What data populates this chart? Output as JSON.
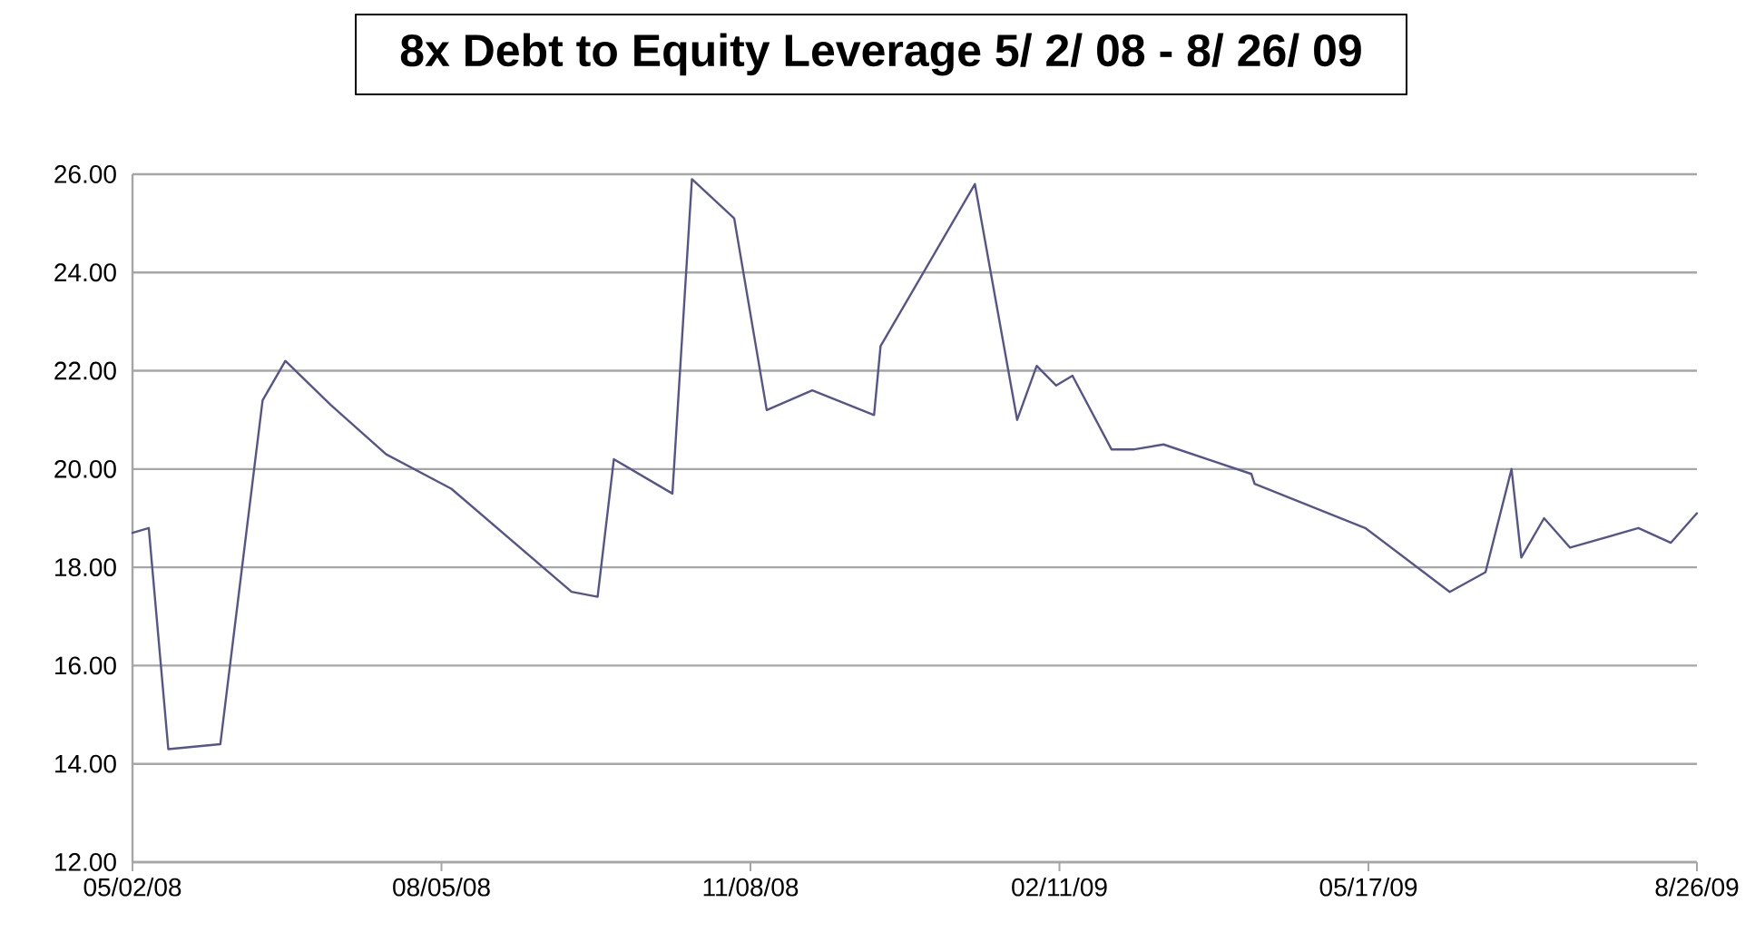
{
  "chart_data": {
    "type": "line",
    "title": "8x Debt to Equity Leverage 5/ 2/ 08 - 8/ 26/ 09",
    "x": [
      "2008-05-02",
      "2008-05-07",
      "2008-05-13",
      "2008-05-29",
      "2008-06-11",
      "2008-06-18",
      "2008-07-02",
      "2008-07-19",
      "2008-08-08",
      "2008-09-14",
      "2008-09-22",
      "2008-09-27",
      "2008-10-15",
      "2008-10-21",
      "2008-11-03",
      "2008-11-13",
      "2008-11-27",
      "2008-12-16",
      "2008-12-18",
      "2009-01-16",
      "2009-01-29",
      "2009-02-04",
      "2009-02-10",
      "2009-02-15",
      "2009-02-27",
      "2009-03-06",
      "2009-03-15",
      "2009-04-11",
      "2009-04-12",
      "2009-05-16",
      "2009-06-11",
      "2009-06-22",
      "2009-06-30",
      "2009-07-03",
      "2009-07-10",
      "2009-07-18",
      "2009-08-08",
      "2009-08-18",
      "2009-08-26"
    ],
    "series": [
      {
        "color": "#55558a",
        "values": [
          18.7,
          18.8,
          14.3,
          14.4,
          21.4,
          22.2,
          21.3,
          20.3,
          19.6,
          17.5,
          17.4,
          20.2,
          19.5,
          25.9,
          25.1,
          21.2,
          21.6,
          21.1,
          22.5,
          25.8,
          21.0,
          22.1,
          21.7,
          21.9,
          20.4,
          20.4,
          20.5,
          19.9,
          19.7,
          18.8,
          17.5,
          17.9,
          20.0,
          18.2,
          19.0,
          18.4,
          18.8,
          18.5,
          19.1
        ]
      }
    ],
    "xlim": [
      "2008-05-02",
      "2009-08-26"
    ],
    "xticks": [
      {
        "value": "2008-05-02",
        "label": "05/02/08"
      },
      {
        "value": "2008-08-05",
        "label": "08/05/08"
      },
      {
        "value": "2008-11-08",
        "label": "11/08/08"
      },
      {
        "value": "2009-02-11",
        "label": "02/11/09"
      },
      {
        "value": "2009-05-17",
        "label": "05/17/09"
      },
      {
        "value": "2009-08-26",
        "label": "8/26/09"
      }
    ],
    "ylim": [
      12,
      26
    ],
    "yticks": [
      {
        "value": 12,
        "label": "12.00"
      },
      {
        "value": 14,
        "label": "14.00"
      },
      {
        "value": 16,
        "label": "16.00"
      },
      {
        "value": 18,
        "label": "18.00"
      },
      {
        "value": 20,
        "label": "20.00"
      },
      {
        "value": 22,
        "label": "22.00"
      },
      {
        "value": 24,
        "label": "24.00"
      },
      {
        "value": 26,
        "label": "26.00"
      }
    ],
    "grid": "y",
    "line_style": "solid"
  }
}
